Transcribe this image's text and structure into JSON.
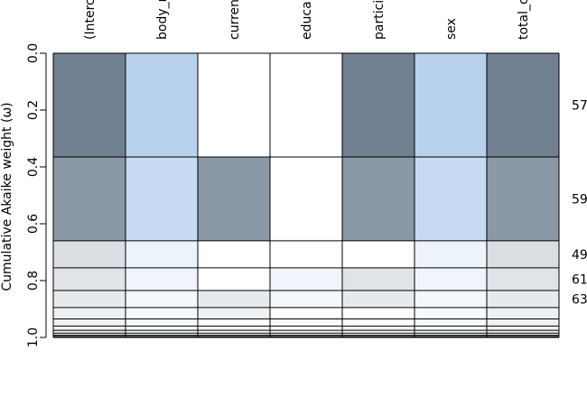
{
  "chart_data": {
    "type": "heatmap",
    "ylabel": "Cumulative Akaike weight (ω)",
    "ylim": [
      0,
      1
    ],
    "yticks": [
      0.0,
      0.2,
      0.4,
      0.6,
      0.8,
      1.0
    ],
    "ytick_labels": [
      "0.0",
      "0.2",
      "0.4",
      "0.6",
      "0.8",
      "1.0"
    ],
    "columns": [
      "(Intercept)",
      "body_mass",
      "current_smoker",
      "education",
      "participant",
      "sex",
      "total_cholesterol"
    ],
    "column_labels_visible": [
      "(Interc",
      "body_r",
      "curren",
      "educa",
      "partici",
      "sex",
      "total_c"
    ],
    "column_kinds": [
      "dark",
      "blue",
      "dark",
      "blue",
      "dark",
      "blue",
      "dark"
    ],
    "colors": {
      "dark_base": "#708090",
      "blue_base": "#b8d2ee",
      "empty": "#ffffff",
      "grid": "#000000"
    },
    "rows": [
      {
        "label": "57",
        "cum_end": 0.365,
        "included": [
          1,
          1,
          0,
          0,
          1,
          1,
          1
        ]
      },
      {
        "label": "59",
        "cum_end": 0.66,
        "included": [
          1,
          1,
          1,
          0,
          1,
          1,
          1
        ]
      },
      {
        "label": "49",
        "cum_end": 0.755,
        "included": [
          1,
          1,
          0,
          0,
          0,
          1,
          1
        ]
      },
      {
        "label": "61",
        "cum_end": 0.835,
        "included": [
          1,
          1,
          0,
          1,
          1,
          1,
          1
        ]
      },
      {
        "label": "63",
        "cum_end": 0.895,
        "included": [
          1,
          1,
          1,
          1,
          1,
          1,
          1
        ]
      },
      {
        "label": "",
        "cum_end": 0.935,
        "included": [
          1,
          1,
          1,
          0,
          0,
          1,
          1
        ]
      },
      {
        "label": "",
        "cum_end": 0.96,
        "included": [
          1,
          1,
          0,
          1,
          0,
          1,
          1
        ]
      },
      {
        "label": "",
        "cum_end": 0.975,
        "included": [
          1,
          1,
          1,
          0,
          1,
          1,
          1
        ]
      },
      {
        "label": "",
        "cum_end": 0.985,
        "included": [
          1,
          1,
          0,
          1,
          0,
          1,
          1
        ]
      },
      {
        "label": "",
        "cum_end": 0.992,
        "included": [
          1,
          1,
          1,
          1,
          0,
          1,
          1
        ]
      },
      {
        "label": "",
        "cum_end": 0.997,
        "included": [
          1,
          1,
          0,
          0,
          1,
          1,
          1
        ]
      },
      {
        "label": "",
        "cum_end": 1.0,
        "included": [
          1,
          1,
          1,
          1,
          1,
          1,
          1
        ]
      }
    ]
  }
}
